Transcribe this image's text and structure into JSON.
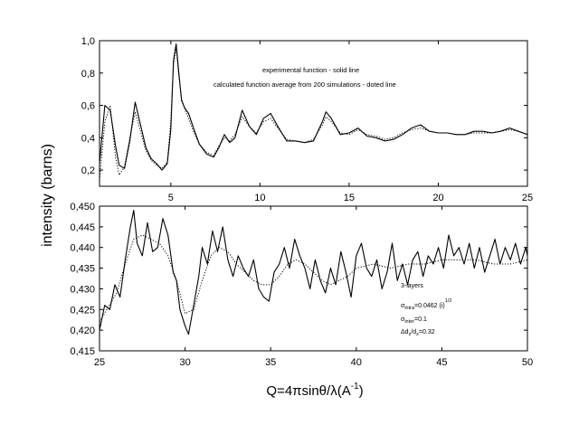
{
  "chart_data": [
    {
      "type": "line",
      "panel": "top",
      "xlim": [
        1,
        25
      ],
      "ylim": [
        0.1,
        1.0
      ],
      "x_ticks": [
        5,
        10,
        15,
        20,
        25
      ],
      "x_tick_labels": [
        "5",
        "10",
        "15",
        "20",
        "25"
      ],
      "y_ticks": [
        0.2,
        0.4,
        0.6,
        0.8,
        1.0
      ],
      "y_tick_labels": [
        "0,2",
        "0,4",
        "0,6",
        "0,8",
        "1,0"
      ],
      "annotations": [
        "experimental function - solid line",
        "calculated function average from 200 simulations - doted line"
      ],
      "series": [
        {
          "name": "experimental function",
          "style": "solid",
          "x": [
            1.0,
            1.3,
            1.6,
            1.9,
            2.1,
            2.4,
            2.7,
            3.0,
            3.3,
            3.6,
            3.9,
            4.2,
            4.5,
            4.8,
            5.0,
            5.15,
            5.3,
            5.45,
            5.6,
            5.8,
            6.0,
            6.3,
            6.6,
            7.0,
            7.4,
            7.7,
            8.0,
            8.3,
            8.6,
            9.0,
            9.4,
            9.8,
            10.2,
            10.6,
            11.0,
            11.5,
            12.0,
            12.5,
            13.0,
            13.5,
            13.7,
            14.0,
            14.5,
            15.0,
            15.5,
            16.0,
            16.5,
            17.0,
            17.5,
            18.0,
            18.5,
            19.0,
            19.5,
            20.0,
            20.5,
            21.0,
            21.5,
            22.0,
            22.5,
            23.0,
            23.5,
            24.0,
            24.5,
            25.0
          ],
          "y": [
            0.24,
            0.6,
            0.57,
            0.35,
            0.23,
            0.21,
            0.38,
            0.62,
            0.48,
            0.34,
            0.27,
            0.24,
            0.2,
            0.24,
            0.45,
            0.88,
            0.98,
            0.8,
            0.63,
            0.58,
            0.55,
            0.45,
            0.36,
            0.3,
            0.28,
            0.34,
            0.42,
            0.37,
            0.4,
            0.57,
            0.47,
            0.42,
            0.52,
            0.55,
            0.47,
            0.38,
            0.38,
            0.37,
            0.38,
            0.5,
            0.56,
            0.52,
            0.42,
            0.43,
            0.46,
            0.41,
            0.4,
            0.38,
            0.39,
            0.42,
            0.46,
            0.48,
            0.44,
            0.43,
            0.43,
            0.42,
            0.42,
            0.44,
            0.44,
            0.43,
            0.44,
            0.46,
            0.44,
            0.42
          ]
        },
        {
          "name": "calculated function average from 200 simulations",
          "style": "dotted",
          "x": [
            1.0,
            1.3,
            1.6,
            1.9,
            2.1,
            2.4,
            2.7,
            3.0,
            3.3,
            3.6,
            3.9,
            4.2,
            4.5,
            4.8,
            5.0,
            5.15,
            5.3,
            5.45,
            5.6,
            5.8,
            6.0,
            6.3,
            6.6,
            7.0,
            7.4,
            7.7,
            8.0,
            8.3,
            8.6,
            9.0,
            9.4,
            9.8,
            10.2,
            10.6,
            11.0,
            11.5,
            12.0,
            12.5,
            13.0,
            13.5,
            13.7,
            14.0,
            14.5,
            15.0,
            15.5,
            16.0,
            16.5,
            17.0,
            17.5,
            18.0,
            18.5,
            19.0,
            19.5,
            20.0,
            20.5,
            21.0,
            21.5,
            22.0,
            22.5,
            23.0,
            23.5,
            24.0,
            24.5,
            25.0
          ],
          "y": [
            0.14,
            0.5,
            0.6,
            0.28,
            0.17,
            0.22,
            0.4,
            0.56,
            0.44,
            0.32,
            0.26,
            0.23,
            0.21,
            0.25,
            0.5,
            0.86,
            0.95,
            0.78,
            0.64,
            0.57,
            0.52,
            0.43,
            0.36,
            0.31,
            0.29,
            0.35,
            0.4,
            0.38,
            0.42,
            0.53,
            0.47,
            0.43,
            0.5,
            0.52,
            0.46,
            0.39,
            0.38,
            0.37,
            0.39,
            0.48,
            0.53,
            0.5,
            0.43,
            0.42,
            0.45,
            0.42,
            0.41,
            0.39,
            0.4,
            0.43,
            0.45,
            0.46,
            0.44,
            0.43,
            0.43,
            0.42,
            0.42,
            0.43,
            0.43,
            0.43,
            0.44,
            0.45,
            0.44,
            0.42
          ]
        }
      ]
    },
    {
      "type": "line",
      "panel": "bottom",
      "xlim": [
        25,
        50
      ],
      "ylim": [
        0.415,
        0.45
      ],
      "x_ticks": [
        25,
        30,
        35,
        40,
        45,
        50
      ],
      "x_tick_labels": [
        "25",
        "30",
        "35",
        "40",
        "45",
        "50"
      ],
      "y_ticks": [
        0.415,
        0.42,
        0.425,
        0.43,
        0.435,
        0.44,
        0.445,
        0.45
      ],
      "y_tick_labels": [
        "0,415",
        "0,420",
        "0,425",
        "0,430",
        "0,435",
        "0,440",
        "0,445",
        "0,450"
      ],
      "annotations": {
        "layers": "3-layers",
        "sigma_intra_sym": "σ",
        "sigma_intra_sub": "intra",
        "sigma_intra_val": "=0.0462 (i)",
        "sigma_intra_sup": "1/2",
        "sigma_inter_sym": "σ",
        "sigma_inter_sub": "inter",
        "sigma_inter_val": "=0.1",
        "delta_pre": "Δd",
        "delta_sub1": "z",
        "delta_mid": "/d",
        "delta_sub2": "z",
        "delta_val": "=0.32"
      },
      "series": [
        {
          "name": "experimental function",
          "style": "solid",
          "x": [
            25.0,
            25.3,
            25.6,
            25.9,
            26.2,
            26.5,
            26.8,
            27.0,
            27.2,
            27.5,
            27.8,
            28.1,
            28.4,
            28.7,
            29.0,
            29.3,
            29.5,
            29.7,
            30.0,
            30.2,
            30.5,
            30.8,
            31.0,
            31.3,
            31.6,
            31.9,
            32.2,
            32.5,
            32.8,
            33.1,
            33.4,
            33.7,
            34.0,
            34.3,
            34.6,
            34.9,
            35.2,
            35.5,
            35.8,
            36.1,
            36.4,
            36.7,
            37.0,
            37.3,
            37.6,
            37.9,
            38.2,
            38.5,
            38.8,
            39.1,
            39.4,
            39.7,
            40.0,
            40.3,
            40.6,
            40.9,
            41.2,
            41.5,
            41.8,
            42.1,
            42.4,
            42.7,
            43.0,
            43.3,
            43.6,
            43.9,
            44.2,
            44.5,
            44.8,
            45.1,
            45.4,
            45.7,
            46.0,
            46.3,
            46.6,
            46.9,
            47.2,
            47.5,
            47.8,
            48.1,
            48.4,
            48.7,
            49.0,
            49.3,
            49.6,
            49.9,
            50.0
          ],
          "y": [
            0.42,
            0.426,
            0.425,
            0.431,
            0.428,
            0.437,
            0.445,
            0.449,
            0.441,
            0.438,
            0.446,
            0.439,
            0.44,
            0.447,
            0.443,
            0.434,
            0.432,
            0.425,
            0.421,
            0.419,
            0.426,
            0.433,
            0.44,
            0.436,
            0.444,
            0.439,
            0.445,
            0.437,
            0.433,
            0.438,
            0.435,
            0.433,
            0.437,
            0.43,
            0.428,
            0.427,
            0.434,
            0.436,
            0.44,
            0.435,
            0.442,
            0.438,
            0.435,
            0.43,
            0.437,
            0.432,
            0.429,
            0.435,
            0.431,
            0.439,
            0.434,
            0.428,
            0.438,
            0.441,
            0.435,
            0.433,
            0.437,
            0.43,
            0.434,
            0.441,
            0.432,
            0.436,
            0.431,
            0.437,
            0.439,
            0.433,
            0.438,
            0.436,
            0.44,
            0.435,
            0.443,
            0.438,
            0.44,
            0.436,
            0.441,
            0.435,
            0.44,
            0.434,
            0.438,
            0.442,
            0.436,
            0.44,
            0.437,
            0.441,
            0.436,
            0.44,
            0.438
          ]
        },
        {
          "name": "calculated function average from 200 simulations",
          "style": "dotted",
          "x": [
            25.0,
            26.0,
            26.5,
            27.0,
            27.5,
            28.0,
            28.5,
            29.0,
            29.5,
            30.0,
            30.5,
            31.0,
            31.5,
            32.0,
            32.5,
            33.0,
            33.5,
            34.0,
            34.5,
            35.0,
            35.5,
            36.0,
            36.5,
            37.0,
            37.5,
            38.0,
            38.5,
            39.0,
            39.5,
            40.0,
            41.0,
            42.0,
            43.0,
            44.0,
            45.0,
            46.0,
            47.0,
            48.0,
            49.0,
            50.0
          ],
          "y": [
            0.422,
            0.429,
            0.436,
            0.442,
            0.443,
            0.442,
            0.441,
            0.438,
            0.432,
            0.424,
            0.425,
            0.432,
            0.438,
            0.44,
            0.439,
            0.436,
            0.434,
            0.432,
            0.431,
            0.431,
            0.433,
            0.436,
            0.437,
            0.436,
            0.434,
            0.432,
            0.431,
            0.432,
            0.433,
            0.435,
            0.436,
            0.435,
            0.436,
            0.436,
            0.437,
            0.437,
            0.437,
            0.436,
            0.436,
            0.437
          ]
        }
      ]
    }
  ],
  "figure": {
    "ylabel": "intensity (barns)",
    "xlabel_main": "Q=4πsinθ/λ(A",
    "xlabel_sup": "-1",
    "xlabel_close": ")"
  }
}
